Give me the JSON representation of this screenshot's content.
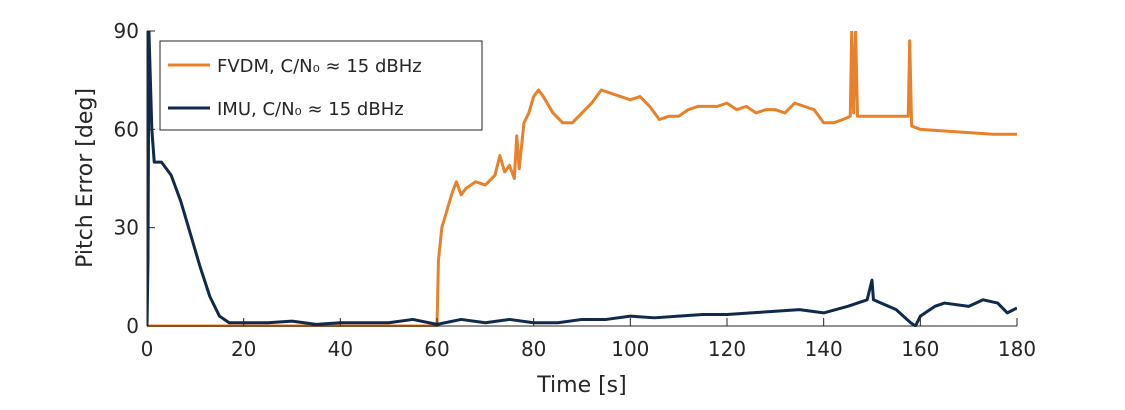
{
  "chart_data": {
    "type": "line",
    "xlabel": "Time [s]",
    "ylabel": "Pitch Error [deg]",
    "xlim": [
      0,
      180
    ],
    "xticks": [
      0,
      20,
      40,
      60,
      80,
      100,
      120,
      140,
      160,
      180
    ],
    "ylim": [
      0,
      90
    ],
    "yticks": [
      0,
      30,
      60,
      90
    ],
    "legend": "upper-left",
    "series": [
      {
        "name": "FVDM, C/N₀ ≈ 15 dBHz",
        "color": "#e9802a",
        "x": [
          0,
          30,
          60,
          60.3,
          61,
          62,
          63,
          64,
          65,
          66,
          68,
          70,
          72,
          73,
          74,
          75,
          76,
          76.5,
          77,
          78,
          79,
          80,
          81,
          82,
          84,
          86,
          88,
          90,
          92,
          94,
          96,
          98,
          100,
          102,
          104,
          106,
          108,
          110,
          112,
          114,
          116,
          118,
          120,
          122,
          124,
          126,
          128,
          130,
          132,
          134,
          136,
          138,
          140,
          142,
          144,
          145.5,
          145.8,
          146.2,
          146.6,
          147,
          147.4,
          150,
          155,
          157.5,
          157.8,
          158.2,
          160,
          165,
          170,
          175,
          180
        ],
        "values": [
          0,
          0,
          0,
          20,
          30,
          35,
          40,
          44,
          40,
          42,
          44,
          43,
          46,
          52,
          47,
          49,
          45,
          58,
          48,
          62,
          65,
          70,
          72,
          70,
          65,
          62,
          62,
          65,
          68,
          72,
          71,
          70,
          69,
          70,
          67,
          63,
          64,
          64,
          66,
          67,
          67,
          67,
          68,
          66,
          67,
          65,
          66,
          66,
          65,
          68,
          67,
          66,
          62,
          62,
          63,
          64,
          90,
          65,
          90,
          64,
          64,
          64,
          64,
          64,
          87,
          61,
          60,
          59.5,
          59,
          58.5,
          58.5
        ]
      },
      {
        "name": "IMU, C/N₀ ≈ 15 dBHz",
        "color": "#0f2a4d",
        "x": [
          0,
          0.2,
          0.4,
          1,
          1.5,
          3,
          5,
          7,
          9,
          11,
          13,
          15,
          17,
          20,
          25,
          30,
          35,
          40,
          45,
          50,
          55,
          60,
          65,
          70,
          75,
          80,
          85,
          90,
          95,
          100,
          105,
          110,
          115,
          120,
          125,
          130,
          135,
          140,
          145,
          149,
          150,
          150.3,
          155,
          158,
          159,
          160,
          163,
          165,
          170,
          173,
          176,
          178,
          180
        ],
        "values": [
          0,
          20,
          90,
          60,
          50,
          50,
          46,
          38,
          28,
          18,
          9,
          3,
          1,
          1,
          1,
          1.5,
          0.5,
          1,
          1,
          1,
          2,
          0.5,
          2,
          1,
          2,
          1,
          1,
          2,
          2,
          3,
          2.5,
          3,
          3.5,
          3.5,
          4,
          4.5,
          5,
          4,
          6,
          8,
          14,
          8,
          5,
          1,
          0,
          3,
          6,
          7,
          6,
          8,
          7,
          4,
          5.5
        ]
      }
    ]
  }
}
